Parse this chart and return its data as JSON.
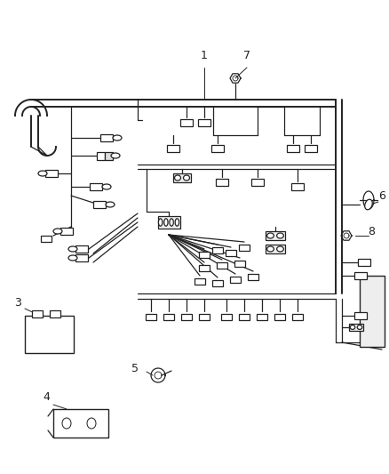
{
  "bg_color": "#ffffff",
  "line_color": "#222222",
  "fig_width": 4.38,
  "fig_height": 5.33,
  "dpi": 100,
  "lw": 0.9,
  "lw_thick": 1.4
}
